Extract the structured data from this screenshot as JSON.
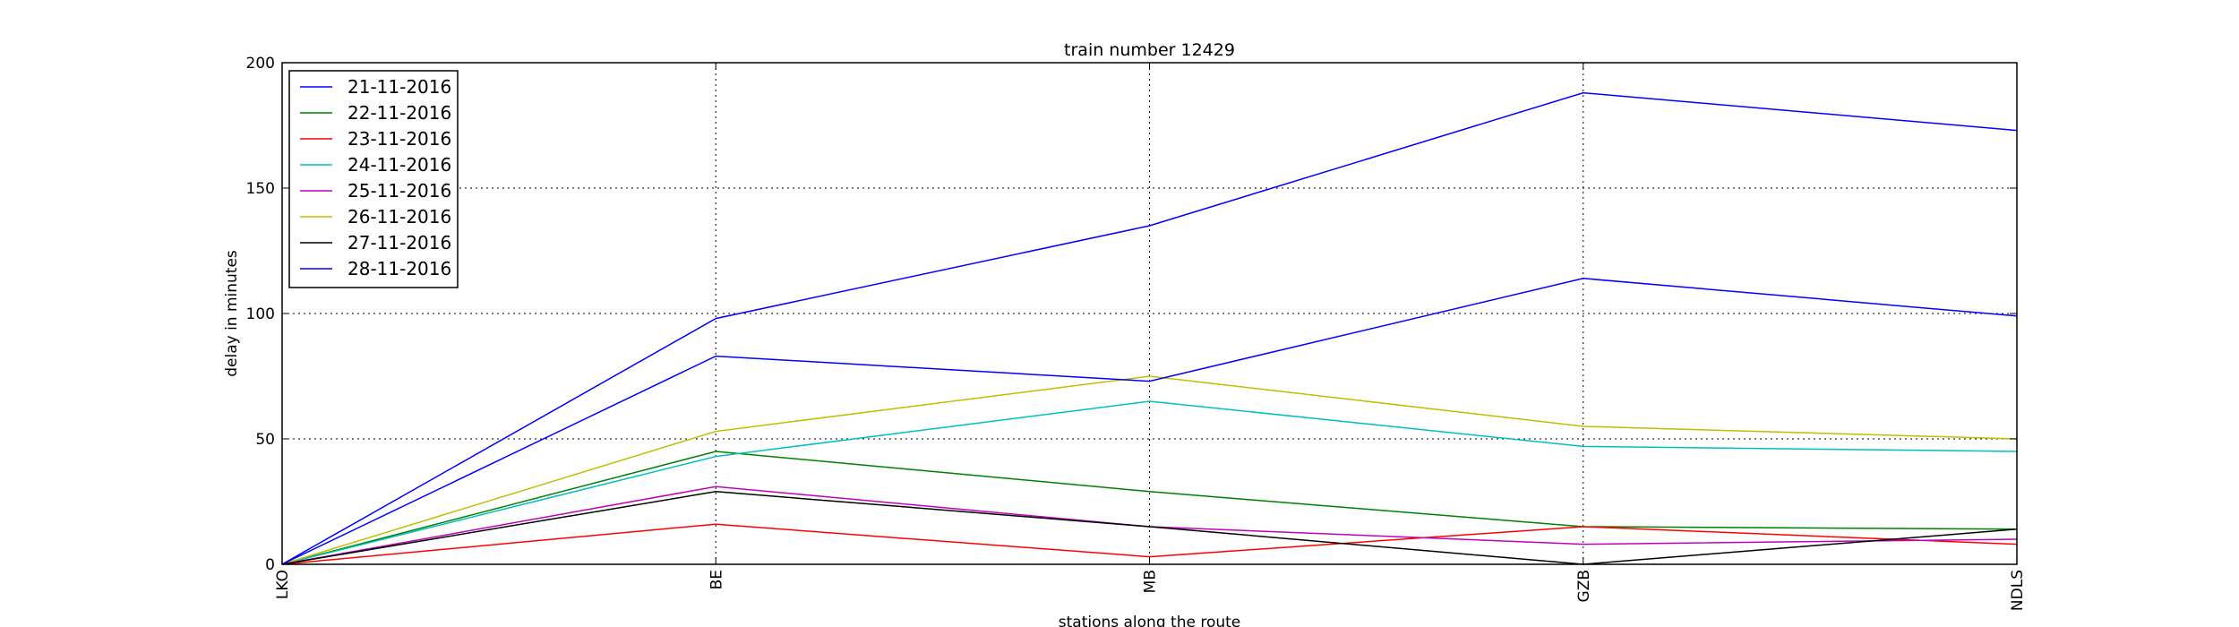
{
  "chart_data": {
    "type": "line",
    "title": "train number 12429",
    "xlabel": "stations along the route",
    "ylabel": "delay in minutes",
    "categories": [
      "LKO",
      "BE",
      "MB",
      "GZB",
      "NDLS"
    ],
    "ylim": [
      0,
      200
    ],
    "yticks": [
      0,
      50,
      100,
      150,
      200
    ],
    "grid": true,
    "legend_position": "upper-left",
    "series": [
      {
        "name": "21-11-2016",
        "color": "#0000ff",
        "values": [
          0,
          98,
          135,
          188,
          173
        ]
      },
      {
        "name": "22-11-2016",
        "color": "#008000",
        "values": [
          0,
          45,
          29,
          15,
          14
        ]
      },
      {
        "name": "23-11-2016",
        "color": "#ff0000",
        "values": [
          0,
          16,
          3,
          15,
          8
        ]
      },
      {
        "name": "24-11-2016",
        "color": "#00bfbf",
        "values": [
          0,
          43,
          65,
          47,
          45
        ]
      },
      {
        "name": "25-11-2016",
        "color": "#bf00bf",
        "values": [
          0,
          31,
          15,
          8,
          10
        ]
      },
      {
        "name": "26-11-2016",
        "color": "#bfbf00",
        "values": [
          0,
          53,
          75,
          55,
          50
        ]
      },
      {
        "name": "27-11-2016",
        "color": "#000000",
        "values": [
          0,
          29,
          15,
          0,
          14
        ]
      },
      {
        "name": "28-11-2016",
        "color": "#0000ff",
        "values": [
          0,
          83,
          73,
          114,
          99
        ]
      }
    ]
  }
}
